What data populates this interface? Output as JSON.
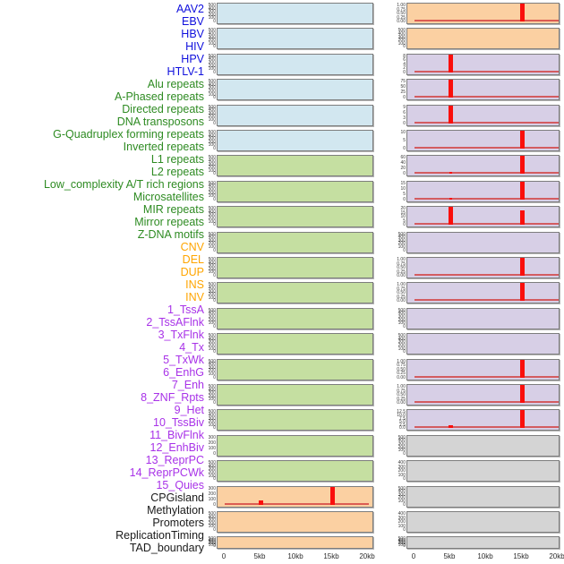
{
  "chart_data": {
    "type": "area",
    "title": "",
    "description": "Multi-track genomic feature density profiles over a 0-20kb window; two columns of 22 tracks, red signal spikes near 5kb and 15kb",
    "x_axis": {
      "tick_labels": [
        "0",
        "5kb",
        "10kb",
        "15kb",
        "20kb"
      ],
      "tick_positions_kb": [
        0,
        5,
        10,
        15,
        20
      ],
      "range_kb": [
        0,
        20
      ]
    },
    "signal_color": "#fa0f0c",
    "baseline_color": "#d23b3b",
    "groups": {
      "virus": {
        "label_color": "#1010dd",
        "panel_color": "#d2e7f0"
      },
      "repeat": {
        "label_color": "#2e8b22",
        "panel_color": "#c5dfa1"
      },
      "structural_variant": {
        "label_color": "#ffa500",
        "panel_color": "#fbd0a2"
      },
      "chromatin_state": {
        "label_color": "#a832e8",
        "panel_color": "#d7cfe6"
      },
      "annotation": {
        "label_color": "#1a1a1a",
        "panel_color": "#d4d4d4"
      }
    },
    "tracks": [
      {
        "label": "AAV2",
        "group": "virus",
        "column": 1,
        "yticks": [
          "500",
          "400",
          "300",
          "200",
          "100",
          "0"
        ],
        "spikes": [],
        "baseline": false
      },
      {
        "label": "EBV",
        "group": "virus",
        "column": 1,
        "yticks": [
          "500",
          "400",
          "300",
          "200",
          "100",
          "0"
        ],
        "spikes": [],
        "baseline": false
      },
      {
        "label": "HBV",
        "group": "virus",
        "column": 1,
        "yticks": [
          "500",
          "400",
          "300",
          "200",
          "100",
          "0"
        ],
        "spikes": [],
        "baseline": false
      },
      {
        "label": "HIV",
        "group": "virus",
        "column": 1,
        "yticks": [
          "500",
          "400",
          "300",
          "200",
          "100",
          "0"
        ],
        "spikes": [],
        "baseline": false
      },
      {
        "label": "HPV",
        "group": "virus",
        "column": 1,
        "yticks": [
          "500",
          "400",
          "300",
          "200",
          "100",
          "0"
        ],
        "spikes": [],
        "baseline": false
      },
      {
        "label": "HTLV-1",
        "group": "virus",
        "column": 1,
        "yticks": [
          "500",
          "400",
          "300",
          "200",
          "100",
          "0"
        ],
        "spikes": [],
        "baseline": false
      },
      {
        "label": "Alu repeats",
        "group": "repeat",
        "column": 1,
        "yticks": [
          "500",
          "400",
          "300",
          "200",
          "100",
          "0"
        ],
        "spikes": [],
        "baseline": false
      },
      {
        "label": "A-Phased repeats",
        "group": "repeat",
        "column": 1,
        "yticks": [
          "500",
          "400",
          "300",
          "200",
          "100",
          "0"
        ],
        "spikes": [],
        "baseline": false
      },
      {
        "label": "Directed repeats",
        "group": "repeat",
        "column": 1,
        "yticks": [
          "500",
          "400",
          "300",
          "200",
          "100",
          "0"
        ],
        "spikes": [],
        "baseline": false
      },
      {
        "label": "DNA transposons",
        "group": "repeat",
        "column": 1,
        "yticks": [
          "500",
          "400",
          "300",
          "200",
          "100",
          "0"
        ],
        "spikes": [],
        "baseline": false
      },
      {
        "label": "G-Quadruplex forming repeats",
        "group": "repeat",
        "column": 1,
        "yticks": [
          "500",
          "400",
          "300",
          "200",
          "100",
          "0"
        ],
        "spikes": [],
        "baseline": false
      },
      {
        "label": "Inverted repeats",
        "group": "repeat",
        "column": 1,
        "yticks": [
          "500",
          "400",
          "300",
          "200",
          "100",
          "0"
        ],
        "spikes": [],
        "baseline": false
      },
      {
        "label": "L1 repeats",
        "group": "repeat",
        "column": 1,
        "yticks": [
          "500",
          "400",
          "300",
          "200",
          "100",
          "0"
        ],
        "spikes": [],
        "baseline": false
      },
      {
        "label": "L2 repeats",
        "group": "repeat",
        "column": 1,
        "yticks": [
          "500",
          "400",
          "300",
          "200",
          "100",
          "0"
        ],
        "spikes": [],
        "baseline": false
      },
      {
        "label": "Low_complexity A/T rich regions",
        "group": "repeat",
        "column": 1,
        "yticks": [
          "500",
          "400",
          "300",
          "200",
          "100",
          "0"
        ],
        "spikes": [],
        "baseline": false
      },
      {
        "label": "Microsatellites",
        "group": "repeat",
        "column": 1,
        "yticks": [
          "500",
          "400",
          "300",
          "200",
          "100",
          "0"
        ],
        "spikes": [],
        "baseline": false
      },
      {
        "label": "MIR repeats",
        "group": "repeat",
        "column": 1,
        "yticks": [
          "500",
          "400",
          "300",
          "200",
          "100",
          "0"
        ],
        "spikes": [],
        "baseline": false
      },
      {
        "label": "Mirror repeats",
        "group": "repeat",
        "column": 1,
        "yticks": [
          "300",
          "200",
          "100",
          "0"
        ],
        "spikes": [],
        "baseline": false
      },
      {
        "label": "Z-DNA motifs",
        "group": "repeat",
        "column": 1,
        "yticks": [
          "500",
          "400",
          "300",
          "200",
          "100",
          "0"
        ],
        "spikes": [],
        "baseline": false
      },
      {
        "label": "CNV",
        "group": "structural_variant",
        "column": 1,
        "yticks": [
          "300",
          "200",
          "100",
          "0"
        ],
        "spikes": [
          {
            "x_kb": 5,
            "frac": 0.24,
            "approx_value": "75"
          },
          {
            "x_kb": 15,
            "frac": 1.0,
            "approx_value": "330"
          }
        ],
        "baseline": true
      },
      {
        "label": "DEL",
        "group": "structural_variant",
        "column": 1,
        "yticks": [
          "500",
          "400",
          "300",
          "200",
          "100",
          "0"
        ],
        "spikes": [],
        "baseline": false
      },
      {
        "label": "DUP",
        "group": "structural_variant",
        "column": 1,
        "yticks": [
          "500",
          "400",
          "300",
          "200",
          "100",
          "0"
        ],
        "spikes": [],
        "baseline": false
      },
      {
        "label": "INS",
        "group": "structural_variant",
        "column": 2,
        "yticks": [
          "1.00",
          "0.75",
          "0.50",
          "0.25",
          "0.00"
        ],
        "spikes": [
          {
            "x_kb": 15,
            "frac": 1.0,
            "approx_value": "1.00"
          }
        ],
        "baseline": true
      },
      {
        "label": "INV",
        "group": "structural_variant",
        "column": 2,
        "yticks": [
          "500",
          "400",
          "300",
          "200",
          "100",
          "0"
        ],
        "spikes": [],
        "baseline": false
      },
      {
        "label": "1_TssA",
        "group": "chromatin_state",
        "column": 2,
        "yticks": [
          "8",
          "6",
          "4",
          "2",
          "0"
        ],
        "spikes": [
          {
            "x_kb": 5,
            "frac": 1.0,
            "approx_value": "8"
          }
        ],
        "baseline": true
      },
      {
        "label": "2_TssAFlnk",
        "group": "chromatin_state",
        "column": 2,
        "yticks": [
          "75",
          "50",
          "25",
          "0"
        ],
        "spikes": [
          {
            "x_kb": 5,
            "frac": 1.0,
            "approx_value": "75"
          }
        ],
        "baseline": true
      },
      {
        "label": "3_TxFlnk",
        "group": "chromatin_state",
        "column": 2,
        "yticks": [
          "9",
          "6",
          "3",
          "0"
        ],
        "spikes": [
          {
            "x_kb": 5,
            "frac": 1.0,
            "approx_value": "9"
          }
        ],
        "baseline": true
      },
      {
        "label": "4_Tx",
        "group": "chromatin_state",
        "column": 2,
        "yticks": [
          "10",
          "5",
          "0"
        ],
        "spikes": [
          {
            "x_kb": 15,
            "frac": 1.0,
            "approx_value": "10"
          }
        ],
        "baseline": true
      },
      {
        "label": "5_TxWk",
        "group": "chromatin_state",
        "column": 2,
        "yticks": [
          "60",
          "40",
          "20",
          "0"
        ],
        "spikes": [
          {
            "x_kb": 5,
            "frac": 0.06,
            "approx_value": "3"
          },
          {
            "x_kb": 15,
            "frac": 1.0,
            "approx_value": "60"
          }
        ],
        "baseline": true
      },
      {
        "label": "6_EnhG",
        "group": "chromatin_state",
        "column": 2,
        "yticks": [
          "15",
          "10",
          "5",
          "0"
        ],
        "spikes": [
          {
            "x_kb": 5,
            "frac": 0.12,
            "approx_value": "2"
          },
          {
            "x_kb": 15,
            "frac": 1.0,
            "approx_value": "15"
          }
        ],
        "baseline": true
      },
      {
        "label": "7_Enh",
        "group": "chromatin_state",
        "column": 2,
        "yticks": [
          "20",
          "15",
          "10",
          "5",
          "0"
        ],
        "spikes": [
          {
            "x_kb": 5,
            "frac": 1.0,
            "approx_value": "20"
          },
          {
            "x_kb": 15,
            "frac": 0.8,
            "approx_value": "16"
          }
        ],
        "baseline": true
      },
      {
        "label": "8_ZNF_Rpts",
        "group": "chromatin_state",
        "column": 2,
        "yticks": [
          "500",
          "400",
          "300",
          "200",
          "100",
          "0"
        ],
        "spikes": [],
        "baseline": false
      },
      {
        "label": "9_Het",
        "group": "chromatin_state",
        "column": 2,
        "yticks": [
          "1.00",
          "0.75",
          "0.50",
          "0.25",
          "0.00"
        ],
        "spikes": [
          {
            "x_kb": 15,
            "frac": 1.0,
            "approx_value": "1.00"
          }
        ],
        "baseline": true
      },
      {
        "label": "10_TssBiv",
        "group": "chromatin_state",
        "column": 2,
        "yticks": [
          "1.00",
          "0.75",
          "0.50",
          "0.25",
          "0.00"
        ],
        "spikes": [
          {
            "x_kb": 15,
            "frac": 1.0,
            "approx_value": "1.00"
          }
        ],
        "baseline": true
      },
      {
        "label": "11_BivFlnk",
        "group": "chromatin_state",
        "column": 2,
        "yticks": [
          "500",
          "400",
          "300",
          "200",
          "100",
          "0"
        ],
        "spikes": [],
        "baseline": false
      },
      {
        "label": "12_EnhBiv",
        "group": "chromatin_state",
        "column": 2,
        "yticks": [
          "500",
          "400",
          "300",
          "200",
          "100",
          "0"
        ],
        "spikes": [],
        "baseline": false
      },
      {
        "label": "13_ReprPC",
        "group": "chromatin_state",
        "column": 2,
        "yticks": [
          "1.00",
          "0.75",
          "0.50",
          "0.25",
          "0.00"
        ],
        "spikes": [
          {
            "x_kb": 15,
            "frac": 1.0,
            "approx_value": "1.00"
          }
        ],
        "baseline": true
      },
      {
        "label": "14_ReprPCWk",
        "group": "chromatin_state",
        "column": 2,
        "yticks": [
          "1.00",
          "0.75",
          "0.50",
          "0.25",
          "0.00"
        ],
        "spikes": [
          {
            "x_kb": 15,
            "frac": 1.0,
            "approx_value": "1.00"
          }
        ],
        "baseline": true
      },
      {
        "label": "15_Quies",
        "group": "chromatin_state",
        "column": 2,
        "yticks": [
          "12.5",
          "10.0",
          "7.5",
          "5.0",
          "2.5",
          "0.0"
        ],
        "spikes": [
          {
            "x_kb": 5,
            "frac": 0.16,
            "approx_value": "2"
          },
          {
            "x_kb": 15,
            "frac": 1.0,
            "approx_value": "12.5"
          }
        ],
        "baseline": true
      },
      {
        "label": "CPGisland",
        "group": "annotation",
        "column": 2,
        "yticks": [
          "500",
          "400",
          "300",
          "200",
          "100",
          "0"
        ],
        "spikes": [],
        "baseline": false
      },
      {
        "label": "Methylation",
        "group": "annotation",
        "column": 2,
        "yticks": [
          "400",
          "300",
          "200",
          "100",
          "0"
        ],
        "spikes": [],
        "baseline": false
      },
      {
        "label": "Promoters",
        "group": "annotation",
        "column": 2,
        "yticks": [
          "500",
          "400",
          "300",
          "200",
          "100",
          "0"
        ],
        "spikes": [],
        "baseline": false
      },
      {
        "label": "ReplicationTiming",
        "group": "annotation",
        "column": 2,
        "yticks": [
          "400",
          "300",
          "200",
          "100",
          "0"
        ],
        "spikes": [],
        "baseline": false
      },
      {
        "label": "TAD_boundary",
        "group": "annotation",
        "column": 2,
        "yticks": [
          "500",
          "400",
          "300",
          "200",
          "100",
          "0"
        ],
        "spikes": [],
        "baseline": false
      }
    ]
  }
}
